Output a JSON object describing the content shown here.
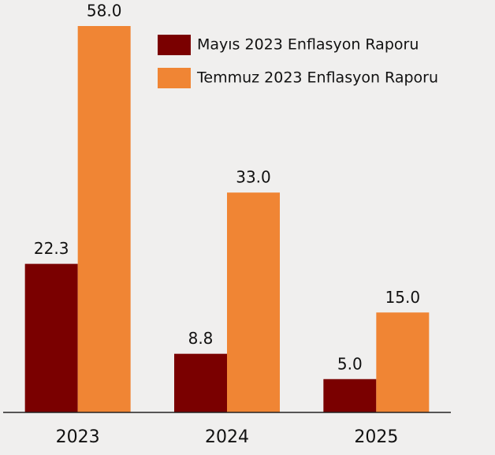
{
  "chart_data": {
    "type": "bar",
    "categories": [
      "2023",
      "2024",
      "2025"
    ],
    "series": [
      {
        "name": "Mayıs 2023 Enflasyon Raporu",
        "color": "#7a0000",
        "values": [
          22.3,
          8.8,
          5.0
        ],
        "value_labels": [
          "22.3",
          "8.8",
          "5.0"
        ]
      },
      {
        "name": "Temmuz 2023 Enflasyon Raporu",
        "color": "#f08534",
        "values": [
          58.0,
          33.0,
          15.0
        ],
        "value_labels": [
          "58.0",
          "33.0",
          "15.0"
        ]
      }
    ],
    "ylim": [
      0,
      58
    ],
    "legend": "top-right"
  }
}
